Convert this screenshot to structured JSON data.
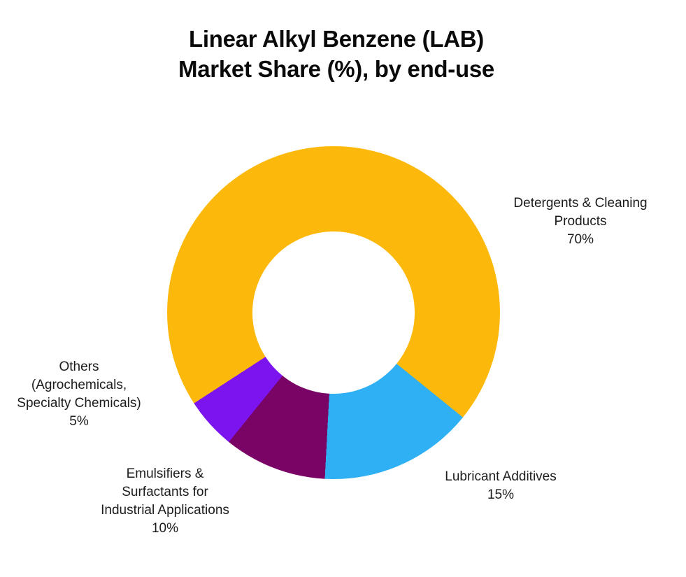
{
  "title": {
    "line1": "Linear Alkyl Benzene (LAB)",
    "line2": "Market Share (%), by end-use"
  },
  "colors": {
    "background": "#ffffff",
    "title_text": "#0a0a0a",
    "label_text": "#1c1c1c"
  },
  "chart_data": {
    "type": "pie",
    "subtype": "donut",
    "title": "Linear Alkyl Benzene (LAB) Market Share (%), by end-use",
    "legend_position": "none",
    "labels_position": "outside",
    "start_angle_deg": 237,
    "inner_radius_ratio": 0.4874,
    "segments": [
      {
        "label": "Detergents & Cleaning Products",
        "value": 70,
        "pct_label": "70%",
        "color": "#FDB80C",
        "callout": "Detergents & Cleaning\nProducts\n70%"
      },
      {
        "label": "Lubricant Additives",
        "value": 15,
        "pct_label": "15%",
        "color": "#2FB0F5",
        "callout": "Lubricant Additives\n15%"
      },
      {
        "label": "Emulsifiers & Surfactants for Industrial Applications",
        "value": 10,
        "pct_label": "10%",
        "color": "#7A0366",
        "callout": "Emulsifiers &\nSurfactants for\nIndustrial Applications\n10%"
      },
      {
        "label": "Others (Agrochemicals, Specialty Chemicals)",
        "value": 5,
        "pct_label": "5%",
        "color": "#7C14EF",
        "callout": "Others\n(Agrochemicals,\nSpecialty Chemicals)\n5%"
      }
    ]
  }
}
